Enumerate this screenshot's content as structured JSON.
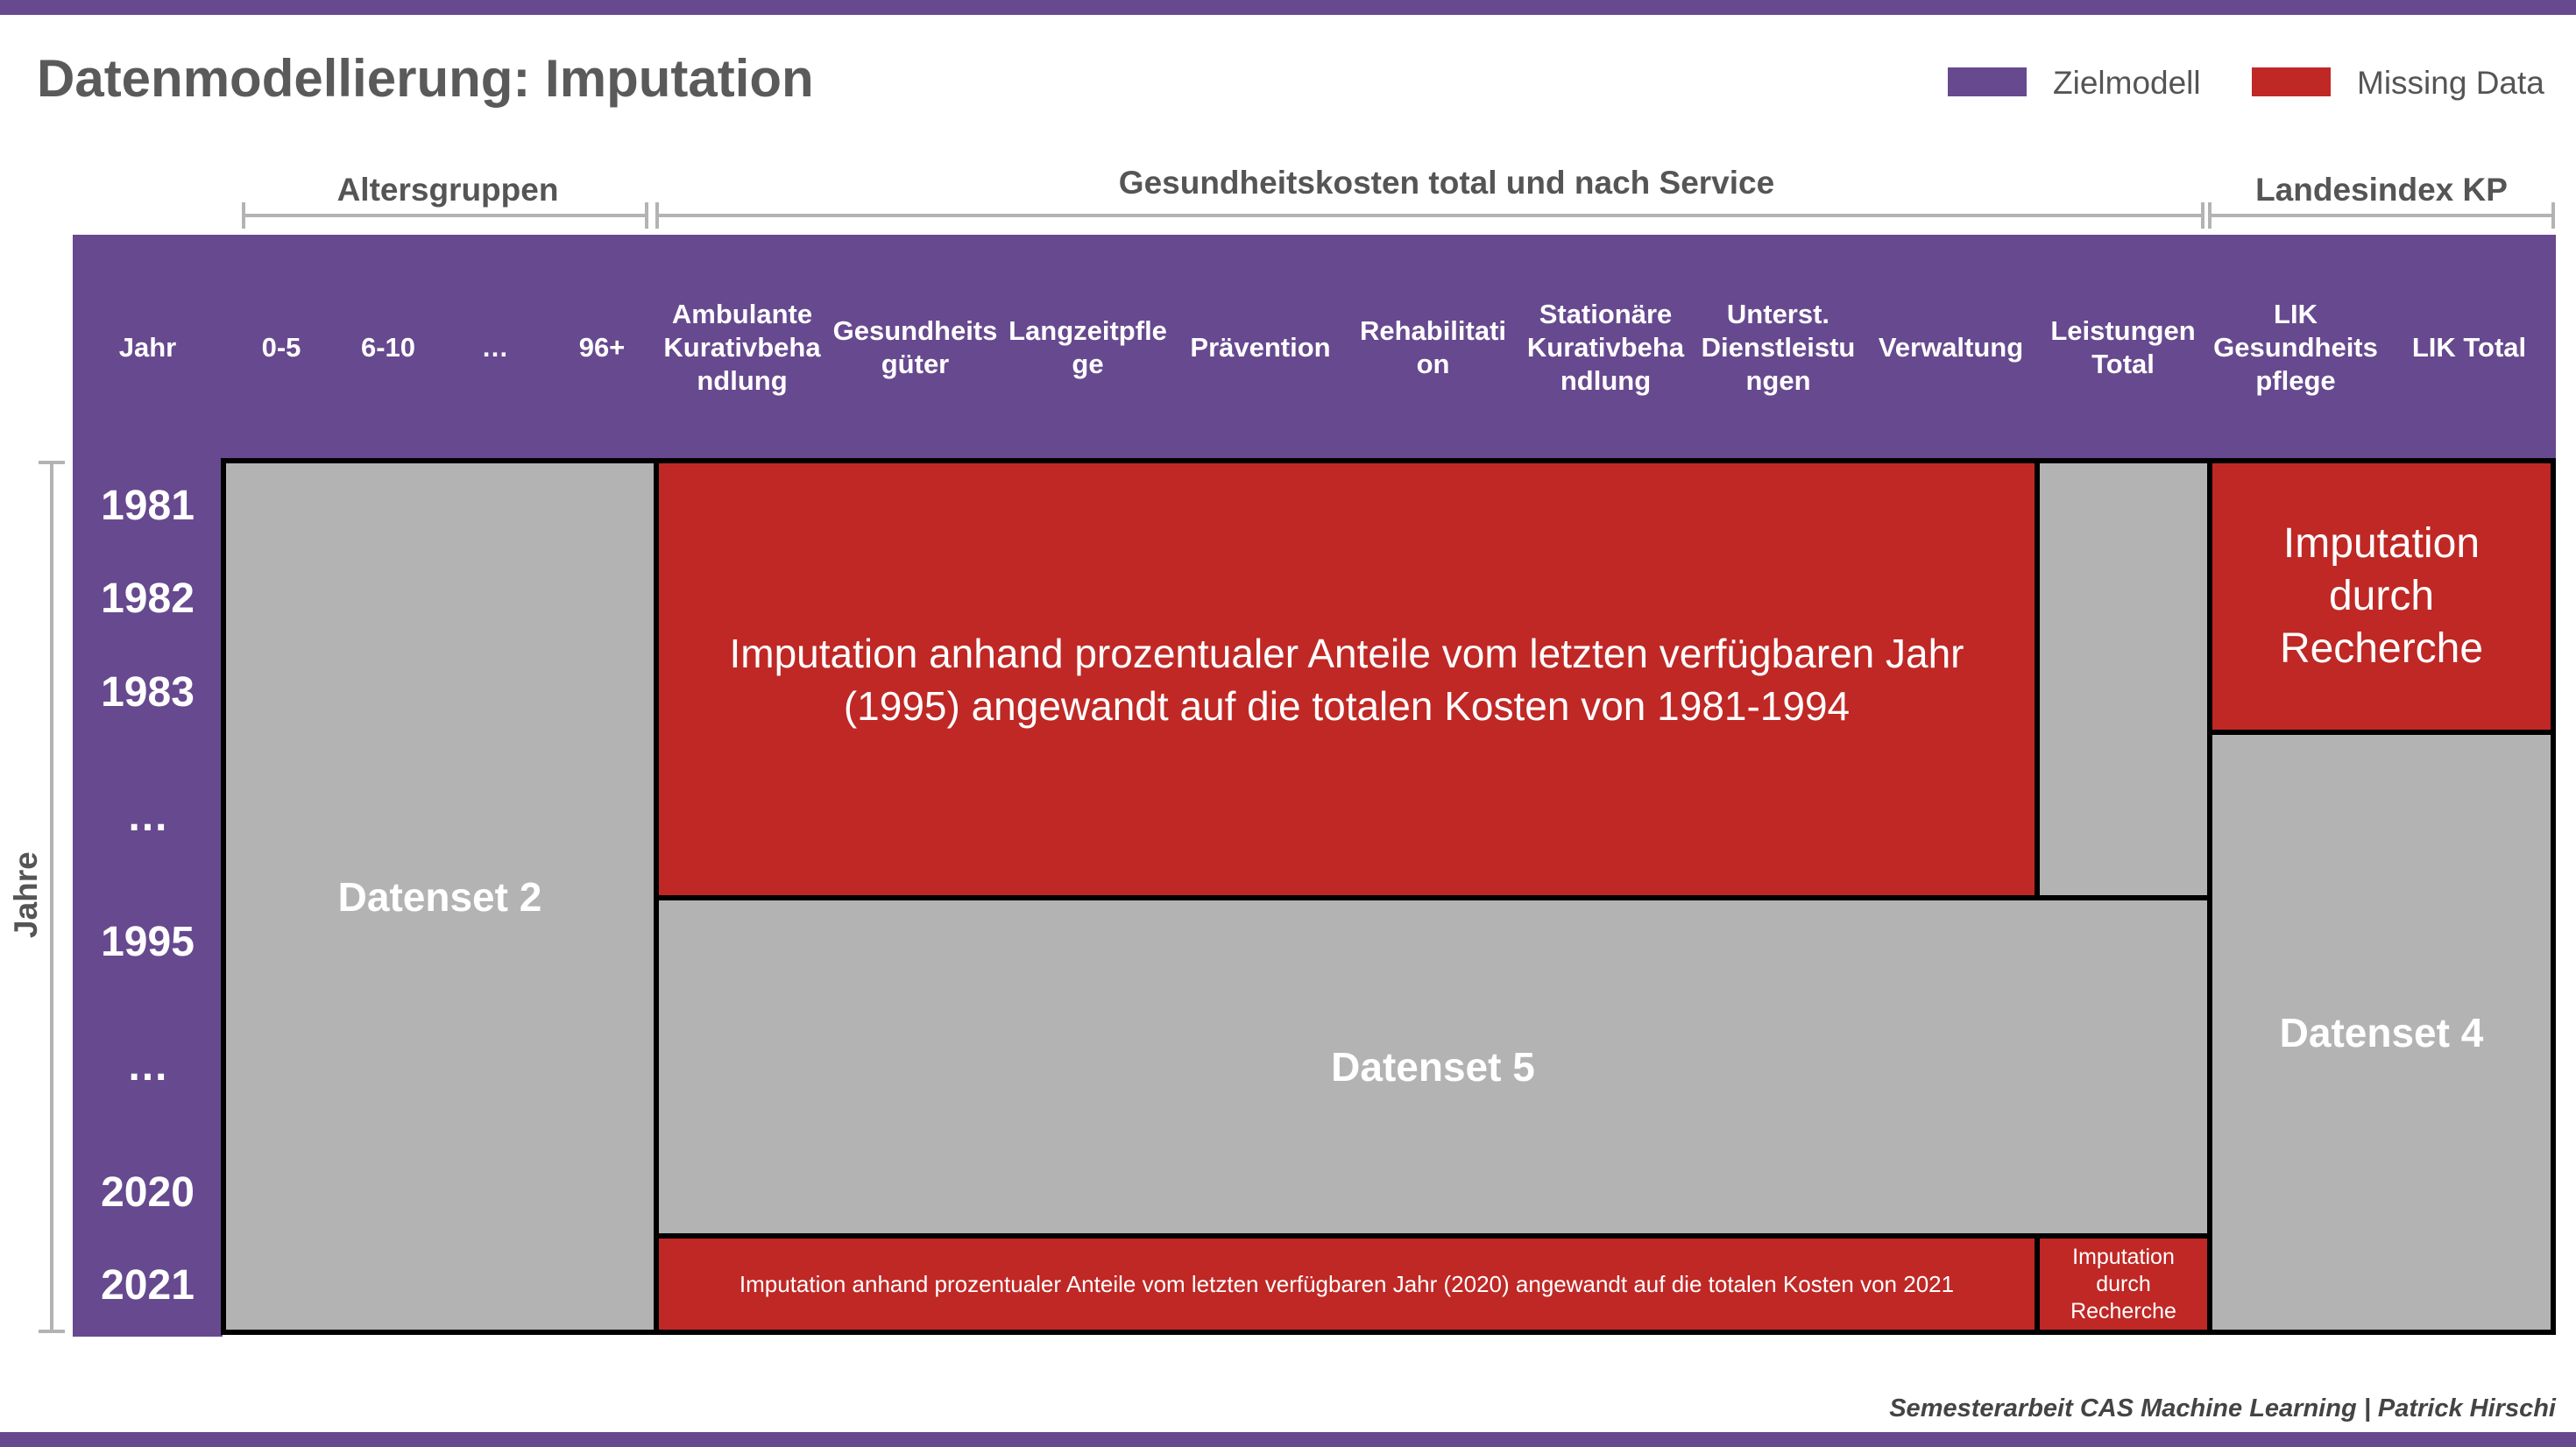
{
  "title": "Datenmodellierung: Imputation",
  "legend": [
    {
      "label": "Zielmodell",
      "color": "#67498f"
    },
    {
      "label": "Missing Data",
      "color": "#bf2825"
    }
  ],
  "groups": {
    "age": "Altersgruppen",
    "costs": "Gesundheitskosten total und nach Service",
    "index": "Landesindex KP"
  },
  "columns": {
    "jahr": "Jahr",
    "a0": "0-5",
    "a6": "6-10",
    "adots": "…",
    "a96": "96+",
    "ambulant": "Ambulante Kurativbeha ndlung",
    "gueter": "Gesundheits güter",
    "langzeit": "Langzeitpfle ge",
    "praevention": "Prävention",
    "reha": "Rehabilitati on",
    "stationaer": "Stationäre Kurativbeha ndlung",
    "unterst": "Unterst. Dienstleistu ngen",
    "verwaltung": "Verwaltung",
    "leistungen": "Leistungen Total",
    "lik_pflege": "LIK Gesundheits pflege",
    "lik_total": "LIK Total"
  },
  "years": [
    "1981",
    "1982",
    "1983",
    "…",
    "1995",
    "…",
    "2020",
    "2021"
  ],
  "y_axis_label": "Jahre",
  "cells": {
    "datenset2": "Datenset 2",
    "imputation_main": "Imputation anhand prozentualer Anteile vom letzten verfügbaren Jahr (1995) angewandt auf die totalen Kosten von 1981-1994",
    "imputation_lik": "Imputation durch Recherche",
    "datenset5": "Datenset 5",
    "datenset4": "Datenset 4",
    "imputation_2021": "Imputation anhand prozentualer Anteile vom letzten verfügbaren Jahr (2020) angewandt auf die totalen Kosten von 2021",
    "imputation_2021_small": "Imputation durch Recherche"
  },
  "footer": "Semesterarbeit CAS Machine Learning | Patrick Hirschi"
}
